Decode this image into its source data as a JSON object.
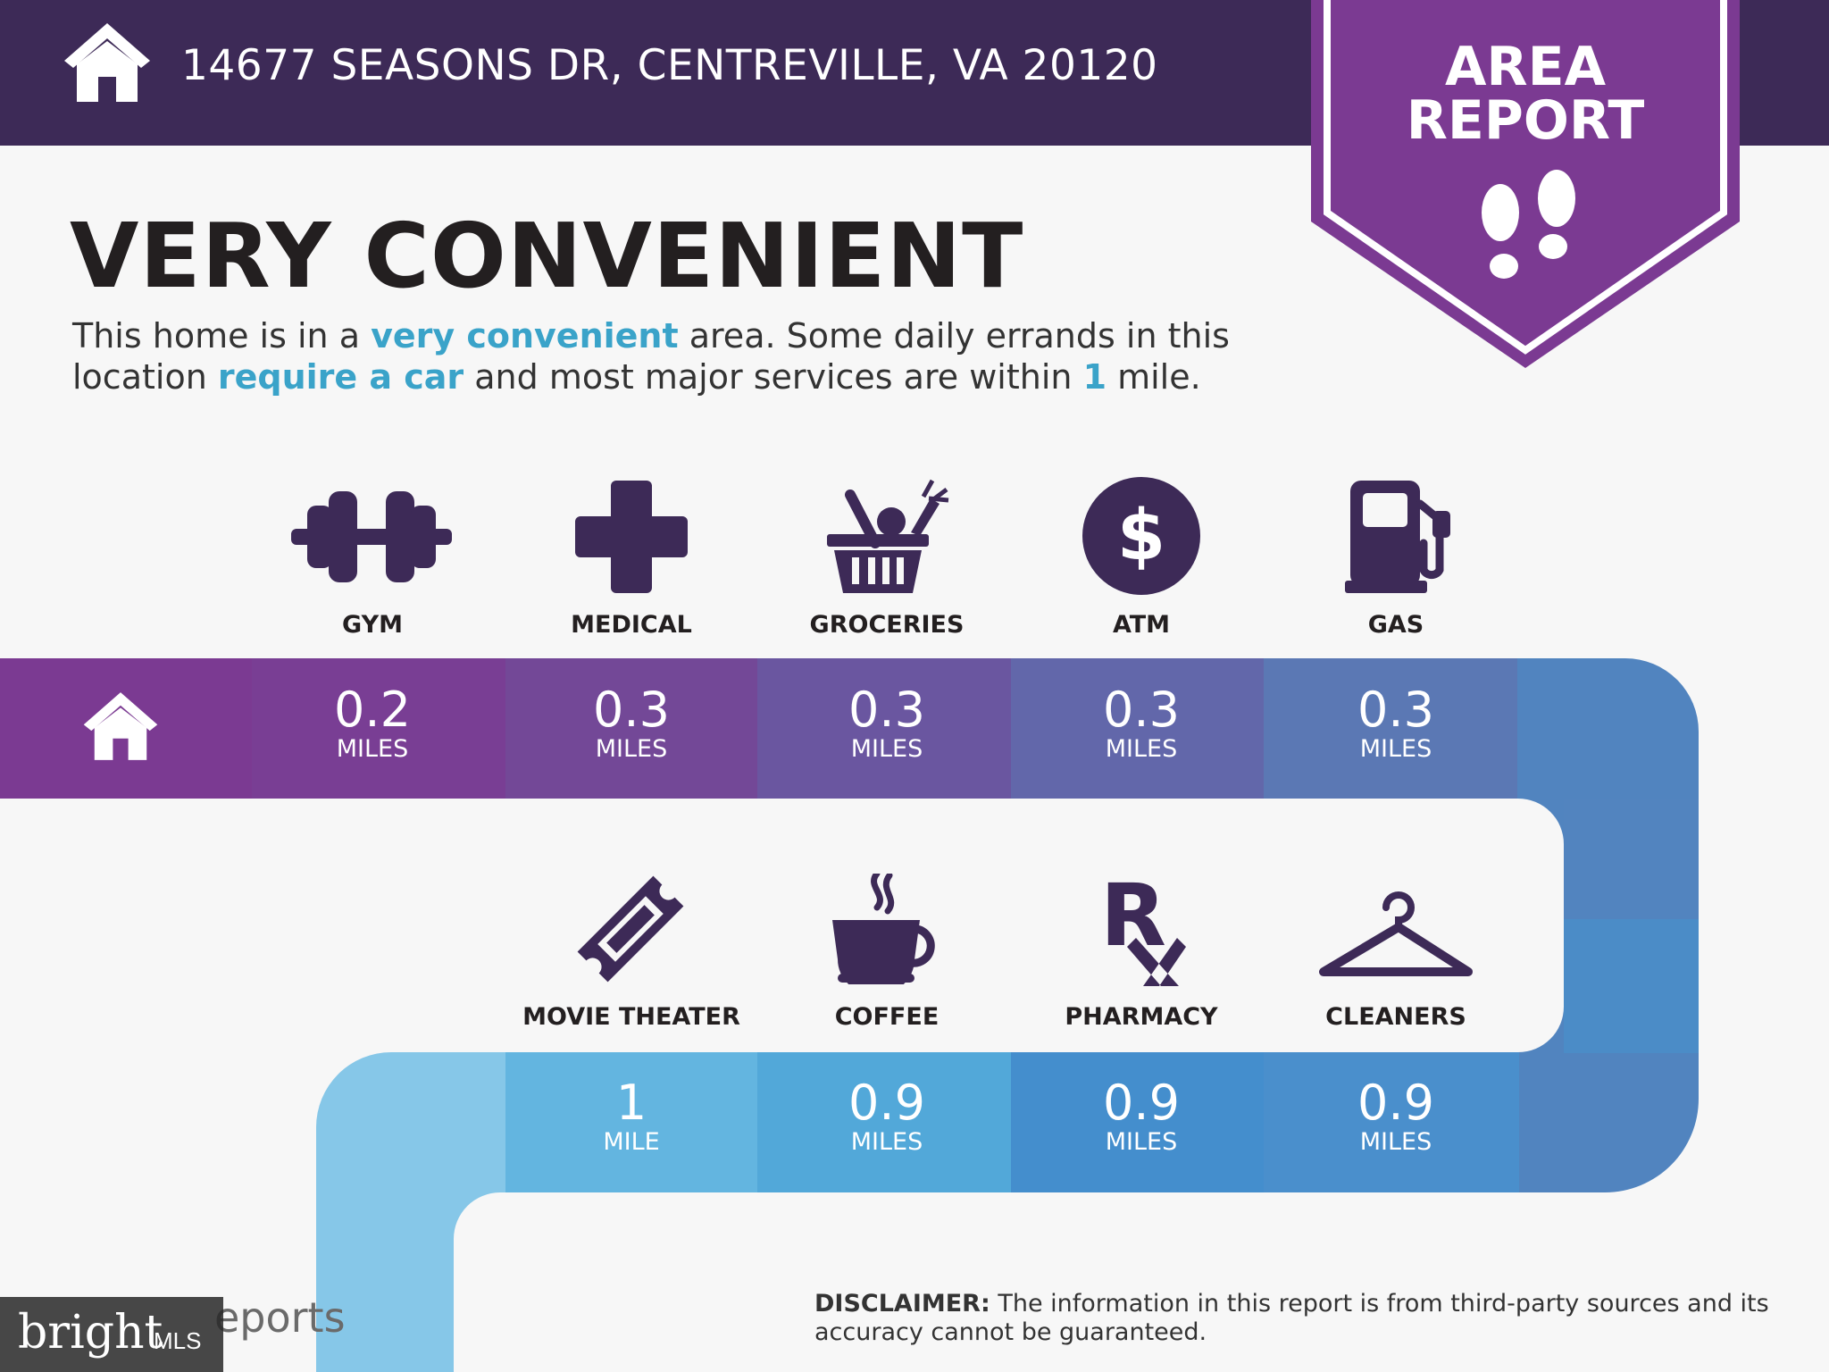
{
  "header": {
    "address": "14677 SEASONS DR, CENTREVILLE, VA 20120"
  },
  "badge": {
    "line1": "AREA",
    "line2": "REPORT"
  },
  "title": "VERY CONVENIENT",
  "description": {
    "p1": "This home is in a ",
    "h1": "very convenient",
    "p2": " area. Some daily errands in this",
    "p3": "location ",
    "h2": "require a car",
    "p4": " and most major services are within ",
    "h3": "1",
    "p5": " mile."
  },
  "services_row1": [
    {
      "label": "GYM",
      "value": "0.2",
      "unit": "MILES",
      "icon": "dumbbell-icon"
    },
    {
      "label": "MEDICAL",
      "value": "0.3",
      "unit": "MILES",
      "icon": "medical-cross-icon"
    },
    {
      "label": "GROCERIES",
      "value": "0.3",
      "unit": "MILES",
      "icon": "grocery-basket-icon"
    },
    {
      "label": "ATM",
      "value": "0.3",
      "unit": "MILES",
      "icon": "dollar-icon"
    },
    {
      "label": "GAS",
      "value": "0.3",
      "unit": "MILES",
      "icon": "gas-pump-icon"
    }
  ],
  "services_row2": [
    {
      "label": "MOVIE THEATER",
      "value": "1",
      "unit": "MILE",
      "icon": "ticket-icon"
    },
    {
      "label": "COFFEE",
      "value": "0.9",
      "unit": "MILES",
      "icon": "coffee-cup-icon"
    },
    {
      "label": "PHARMACY",
      "value": "0.9",
      "unit": "MILES",
      "icon": "rx-icon"
    },
    {
      "label": "CLEANERS",
      "value": "0.9",
      "unit": "MILES",
      "icon": "hanger-icon"
    }
  ],
  "colors": {
    "header": "#3d2a57",
    "badge": "#7b3a92",
    "highlight": "#3aa3c9",
    "icon": "#3d2a57"
  },
  "footer": {
    "disclaimer_bold": "DISCLAIMER:",
    "disclaimer_text": " The information in this report is from third-party sources and its accuracy cannot be guaranteed.",
    "logo_text": "eports",
    "watermark_brand": "bright",
    "watermark_mls": "MLS"
  }
}
